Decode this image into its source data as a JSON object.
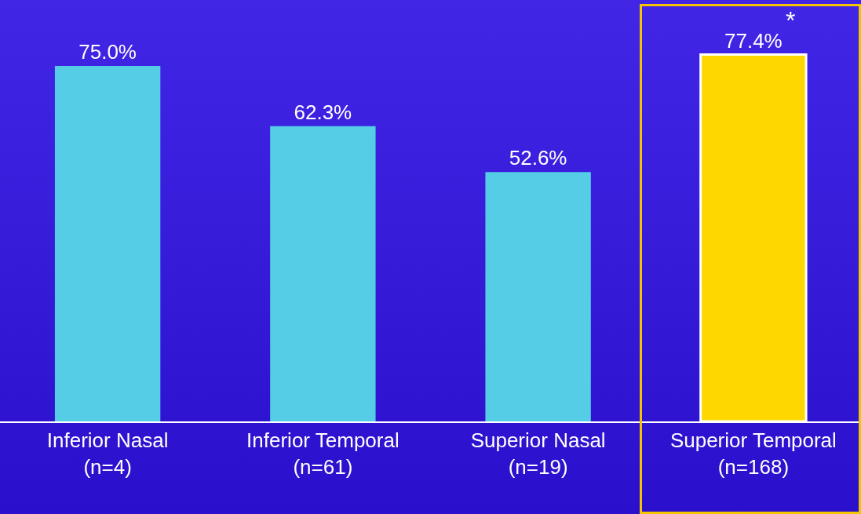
{
  "chart_data": {
    "type": "bar",
    "categories": [
      "Inferior Nasal\n(n=4)",
      "Inferior Temporal\n(n=61)",
      "Superior Nasal\n(n=19)",
      "Superior Temporal\n(n=168)"
    ],
    "values": [
      75.0,
      62.3,
      52.6,
      77.4
    ],
    "colors": [
      "#56cde6",
      "#56cde6",
      "#56cde6",
      "#ffd700"
    ],
    "value_labels": [
      "75.0%",
      "62.3%",
      "52.6%",
      "77.4%"
    ],
    "annotations": [
      "*"
    ],
    "tick_labels": "x",
    "grid": false
  }
}
